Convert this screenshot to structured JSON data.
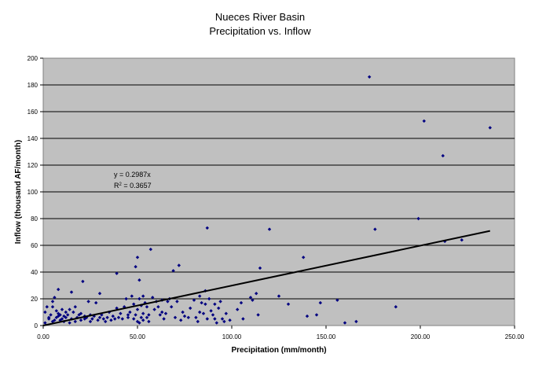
{
  "chart_data": {
    "type": "scatter",
    "title": [
      "Nueces River Basin",
      "Precipitation vs. Inflow"
    ],
    "xlabel": "Precipitation (mm/month)",
    "ylabel": "Inflow (thousand AF/month)",
    "xlim": [
      0,
      250
    ],
    "ylim": [
      0,
      200
    ],
    "xticks": [
      0,
      50,
      100,
      150,
      200,
      250
    ],
    "xtick_labels": [
      "0.00",
      "50.00",
      "100.00",
      "150.00",
      "200.00",
      "250.00"
    ],
    "yticks": [
      0,
      20,
      40,
      60,
      80,
      100,
      120,
      140,
      160,
      180,
      200
    ],
    "ytick_labels": [
      "0",
      "20",
      "40",
      "60",
      "80",
      "100",
      "120",
      "140",
      "160",
      "180",
      "200"
    ],
    "grid": true,
    "plot_background": "#C0C0C0",
    "marker_color": "#000080",
    "trendline": {
      "slope": 0.2987,
      "x_range": [
        0,
        237
      ],
      "color": "#000000",
      "equation": "y = 0.2987x",
      "r2_prefix": "R",
      "r2_sup": "2",
      "r2_value": " = 0.3657"
    },
    "points": [
      [
        1,
        2
      ],
      [
        1,
        10
      ],
      [
        2,
        14
      ],
      [
        3,
        5
      ],
      [
        3,
        6
      ],
      [
        4,
        8
      ],
      [
        5,
        3
      ],
      [
        5,
        14
      ],
      [
        5,
        18
      ],
      [
        6,
        4
      ],
      [
        6,
        21
      ],
      [
        7,
        6
      ],
      [
        7,
        11
      ],
      [
        8,
        7
      ],
      [
        8,
        9
      ],
      [
        8,
        27
      ],
      [
        9,
        4
      ],
      [
        9,
        8
      ],
      [
        10,
        5
      ],
      [
        10,
        12
      ],
      [
        11,
        3
      ],
      [
        11,
        7
      ],
      [
        12,
        6
      ],
      [
        12,
        10
      ],
      [
        13,
        8
      ],
      [
        14,
        2
      ],
      [
        14,
        12
      ],
      [
        15,
        5
      ],
      [
        15,
        25
      ],
      [
        16,
        10
      ],
      [
        17,
        3
      ],
      [
        17,
        14
      ],
      [
        18,
        6
      ],
      [
        19,
        8
      ],
      [
        20,
        4
      ],
      [
        20,
        9
      ],
      [
        21,
        33
      ],
      [
        22,
        5
      ],
      [
        22,
        7
      ],
      [
        23,
        6
      ],
      [
        24,
        18
      ],
      [
        25,
        3
      ],
      [
        25,
        8
      ],
      [
        26,
        5
      ],
      [
        27,
        7
      ],
      [
        28,
        17
      ],
      [
        29,
        4
      ],
      [
        30,
        6
      ],
      [
        30,
        24
      ],
      [
        31,
        8
      ],
      [
        32,
        5
      ],
      [
        33,
        3
      ],
      [
        34,
        6
      ],
      [
        35,
        10
      ],
      [
        36,
        4
      ],
      [
        37,
        7
      ],
      [
        38,
        5
      ],
      [
        39,
        13
      ],
      [
        39,
        39
      ],
      [
        40,
        6
      ],
      [
        41,
        9
      ],
      [
        42,
        5
      ],
      [
        43,
        14
      ],
      [
        44,
        20
      ],
      [
        45,
        6
      ],
      [
        45,
        8
      ],
      [
        46,
        10
      ],
      [
        47,
        22
      ],
      [
        48,
        5
      ],
      [
        48,
        16
      ],
      [
        49,
        8
      ],
      [
        49,
        44
      ],
      [
        50,
        3
      ],
      [
        50,
        12
      ],
      [
        50,
        51
      ],
      [
        51,
        2
      ],
      [
        51,
        20
      ],
      [
        51,
        34
      ],
      [
        52,
        6
      ],
      [
        52,
        15
      ],
      [
        53,
        4
      ],
      [
        53,
        9
      ],
      [
        53,
        22
      ],
      [
        54,
        17
      ],
      [
        55,
        6
      ],
      [
        55,
        14
      ],
      [
        56,
        3
      ],
      [
        56,
        8
      ],
      [
        57,
        57
      ],
      [
        58,
        21
      ],
      [
        59,
        12
      ],
      [
        60,
        18
      ],
      [
        61,
        14
      ],
      [
        62,
        8
      ],
      [
        63,
        19
      ],
      [
        63,
        10
      ],
      [
        64,
        5
      ],
      [
        65,
        9
      ],
      [
        66,
        18
      ],
      [
        67,
        20
      ],
      [
        68,
        14
      ],
      [
        69,
        41
      ],
      [
        70,
        6
      ],
      [
        71,
        18
      ],
      [
        72,
        45
      ],
      [
        73,
        4
      ],
      [
        74,
        10
      ],
      [
        75,
        7
      ],
      [
        77,
        6
      ],
      [
        78,
        13
      ],
      [
        80,
        19
      ],
      [
        81,
        6
      ],
      [
        82,
        3
      ],
      [
        83,
        10
      ],
      [
        83,
        22
      ],
      [
        84,
        17
      ],
      [
        85,
        9
      ],
      [
        86,
        26
      ],
      [
        86,
        16
      ],
      [
        87,
        73
      ],
      [
        87,
        5
      ],
      [
        88,
        20
      ],
      [
        89,
        11
      ],
      [
        90,
        8
      ],
      [
        91,
        16
      ],
      [
        91,
        5
      ],
      [
        92,
        2
      ],
      [
        93,
        13
      ],
      [
        94,
        18
      ],
      [
        95,
        5
      ],
      [
        96,
        3
      ],
      [
        97,
        9
      ],
      [
        99,
        4
      ],
      [
        103,
        12
      ],
      [
        105,
        17
      ],
      [
        106,
        5
      ],
      [
        110,
        21
      ],
      [
        111,
        19
      ],
      [
        113,
        24
      ],
      [
        114,
        8
      ],
      [
        115,
        43
      ],
      [
        120,
        72
      ],
      [
        125,
        22
      ],
      [
        130,
        16
      ],
      [
        138,
        51
      ],
      [
        140,
        7
      ],
      [
        145,
        8
      ],
      [
        147,
        17
      ],
      [
        156,
        19
      ],
      [
        160,
        2
      ],
      [
        166,
        3
      ],
      [
        173,
        186
      ],
      [
        176,
        72
      ],
      [
        187,
        14
      ],
      [
        199,
        80
      ],
      [
        202,
        153
      ],
      [
        212,
        127
      ],
      [
        213,
        63
      ],
      [
        222,
        64
      ],
      [
        237,
        148
      ]
    ]
  }
}
